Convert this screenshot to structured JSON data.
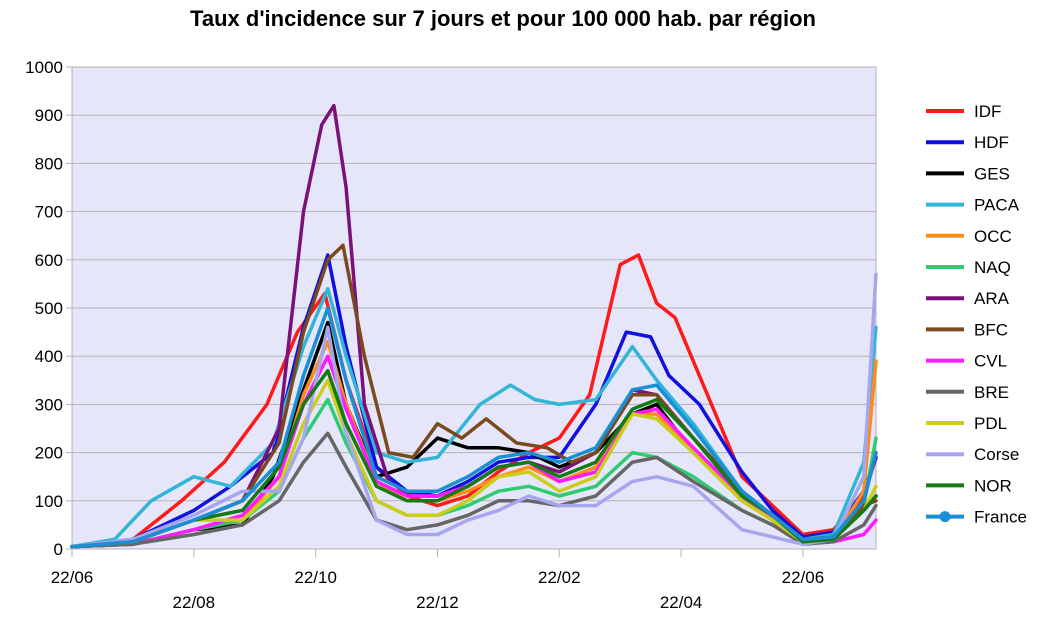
{
  "chart_data": {
    "type": "line",
    "title": "Taux d'incidence sur 7 jours et pour 100 000 hab. par région",
    "xlabel": "",
    "ylabel": "",
    "ylim": [
      0,
      1000
    ],
    "yticks": [
      0,
      100,
      200,
      300,
      400,
      500,
      600,
      700,
      800,
      900,
      1000
    ],
    "xlim": [
      0,
      13.2
    ],
    "xticks": [
      {
        "x": 0,
        "label": "22/06",
        "row": 0
      },
      {
        "x": 2,
        "label": "22/08",
        "row": 1
      },
      {
        "x": 4,
        "label": "22/10",
        "row": 0
      },
      {
        "x": 6,
        "label": "22/12",
        "row": 1
      },
      {
        "x": 8,
        "label": "22/02",
        "row": 0
      },
      {
        "x": 10,
        "label": "22/04",
        "row": 1
      },
      {
        "x": 12,
        "label": "22/06",
        "row": 0
      }
    ],
    "grid": true,
    "plot_background": "#e6e6fa",
    "legend_position": "right",
    "series": [
      {
        "name": "IDF",
        "color": "#ff1a1a",
        "x": [
          0,
          1,
          1.8,
          2.5,
          3.2,
          3.7,
          4.15,
          4.5,
          5,
          5.5,
          6,
          6.5,
          7,
          7.5,
          8,
          8.5,
          9,
          9.3,
          9.6,
          9.9,
          10.5,
          11,
          11.5,
          12,
          12.5,
          13,
          13.2
        ],
        "y": [
          5,
          20,
          100,
          180,
          300,
          450,
          530,
          350,
          170,
          110,
          90,
          110,
          160,
          200,
          230,
          320,
          590,
          610,
          510,
          480,
          300,
          150,
          90,
          30,
          40,
          110,
          190
        ]
      },
      {
        "name": "HDF",
        "color": "#1010e0",
        "x": [
          0,
          1,
          2,
          2.6,
          3.3,
          3.8,
          4.2,
          4.5,
          5,
          5.5,
          6,
          6.5,
          7,
          7.5,
          8,
          8.6,
          9.1,
          9.5,
          9.8,
          10.3,
          11,
          11.5,
          12,
          12.5,
          13,
          13.2
        ],
        "y": [
          5,
          20,
          80,
          130,
          200,
          460,
          610,
          420,
          170,
          120,
          110,
          140,
          180,
          190,
          190,
          300,
          450,
          440,
          360,
          300,
          160,
          80,
          25,
          35,
          120,
          190
        ]
      },
      {
        "name": "GES",
        "color": "#000000",
        "x": [
          0,
          1,
          2,
          2.8,
          3.3,
          3.8,
          4.2,
          4.5,
          5,
          5.5,
          6,
          6.5,
          7,
          7.5,
          8,
          8.6,
          9.2,
          9.6,
          10.2,
          11,
          11.5,
          12,
          12.5,
          13,
          13.2
        ],
        "y": [
          5,
          10,
          40,
          50,
          150,
          330,
          470,
          300,
          150,
          170,
          230,
          210,
          210,
          200,
          170,
          200,
          280,
          300,
          200,
          110,
          60,
          15,
          20,
          80,
          110
        ]
      },
      {
        "name": "PACA",
        "color": "#33b5d6",
        "x": [
          0,
          0.7,
          1.3,
          2,
          2.6,
          3.3,
          3.8,
          4.2,
          4.5,
          5,
          5.5,
          6,
          6.7,
          7.2,
          7.6,
          8,
          8.6,
          9.2,
          9.6,
          10.2,
          11,
          11.5,
          12,
          12.5,
          13,
          13.2
        ],
        "y": [
          5,
          20,
          100,
          150,
          130,
          220,
          420,
          540,
          400,
          200,
          180,
          190,
          300,
          340,
          310,
          300,
          310,
          420,
          350,
          260,
          120,
          70,
          20,
          30,
          180,
          460
        ]
      },
      {
        "name": "OCC",
        "color": "#ff8c1a",
        "x": [
          0,
          1,
          2,
          2.8,
          3.4,
          3.8,
          4.2,
          4.5,
          5,
          5.5,
          6,
          6.5,
          7,
          7.5,
          8,
          8.6,
          9.2,
          9.6,
          10.2,
          11,
          11.5,
          12,
          12.5,
          13,
          13.2
        ],
        "y": [
          5,
          10,
          40,
          60,
          150,
          320,
          430,
          300,
          140,
          100,
          100,
          120,
          150,
          170,
          140,
          170,
          280,
          280,
          200,
          100,
          60,
          15,
          20,
          120,
          390
        ]
      },
      {
        "name": "NAQ",
        "color": "#2ecc71",
        "x": [
          0,
          1,
          2,
          2.8,
          3.4,
          3.8,
          4.2,
          4.5,
          5,
          5.5,
          6,
          6.5,
          7,
          7.5,
          8,
          8.6,
          9.2,
          9.6,
          10.2,
          11,
          11.5,
          12,
          12.5,
          13,
          13.2
        ],
        "y": [
          5,
          10,
          40,
          60,
          120,
          230,
          310,
          220,
          100,
          70,
          70,
          90,
          120,
          130,
          110,
          130,
          200,
          190,
          150,
          80,
          50,
          15,
          20,
          90,
          230
        ]
      },
      {
        "name": "ARA",
        "color": "#7b107b",
        "x": [
          0,
          1,
          2,
          2.8,
          3.4,
          3.8,
          4.1,
          4.3,
          4.5,
          4.8,
          5.2,
          5.6,
          6,
          6.5,
          7,
          7.5,
          8,
          8.6,
          9.2,
          9.6,
          10.2,
          11,
          11.5,
          12,
          12.5,
          13,
          13.2
        ],
        "y": [
          5,
          15,
          60,
          100,
          250,
          700,
          880,
          920,
          750,
          300,
          140,
          110,
          110,
          130,
          170,
          180,
          160,
          200,
          330,
          320,
          230,
          120,
          70,
          20,
          25,
          100,
          200
        ]
      },
      {
        "name": "BFC",
        "color": "#7a4a1e",
        "x": [
          0,
          1,
          2,
          2.8,
          3.4,
          3.8,
          4.2,
          4.45,
          4.8,
          5.2,
          5.6,
          6,
          6.4,
          6.8,
          7.3,
          7.8,
          8.2,
          8.6,
          9.2,
          9.6,
          10.2,
          11,
          11.5,
          12,
          12.5,
          13,
          13.2
        ],
        "y": [
          5,
          15,
          60,
          100,
          220,
          450,
          600,
          630,
          400,
          200,
          190,
          260,
          230,
          270,
          220,
          210,
          180,
          200,
          320,
          320,
          230,
          120,
          70,
          20,
          25,
          90,
          100
        ]
      },
      {
        "name": "CVL",
        "color": "#ff1aff",
        "x": [
          0,
          1,
          2,
          2.8,
          3.4,
          3.8,
          4.2,
          4.5,
          5,
          5.5,
          6,
          6.5,
          7,
          7.5,
          8,
          8.6,
          9.2,
          9.6,
          10.2,
          11,
          11.5,
          12,
          12.5,
          13,
          13.2
        ],
        "y": [
          5,
          10,
          40,
          70,
          150,
          300,
          400,
          290,
          140,
          110,
          110,
          130,
          170,
          180,
          140,
          160,
          280,
          290,
          210,
          110,
          60,
          15,
          15,
          30,
          60
        ]
      },
      {
        "name": "BRE",
        "color": "#666666",
        "x": [
          0,
          1,
          2,
          2.8,
          3.4,
          3.8,
          4.2,
          4.5,
          5,
          5.5,
          6,
          6.5,
          7,
          7.5,
          8,
          8.6,
          9.2,
          9.6,
          10.2,
          11,
          11.5,
          12,
          12.5,
          13,
          13.2
        ],
        "y": [
          5,
          10,
          30,
          50,
          100,
          180,
          240,
          170,
          60,
          40,
          50,
          70,
          100,
          100,
          90,
          110,
          180,
          190,
          140,
          80,
          50,
          10,
          15,
          50,
          90
        ]
      },
      {
        "name": "PDL",
        "color": "#cccc1a",
        "x": [
          0,
          1,
          2,
          2.8,
          3.4,
          3.8,
          4.2,
          4.5,
          5,
          5.5,
          6,
          6.5,
          7,
          7.5,
          8,
          8.6,
          9.2,
          9.6,
          10.2,
          11,
          11.5,
          12,
          12.5,
          13,
          13.2
        ],
        "y": [
          5,
          15,
          60,
          60,
          130,
          260,
          350,
          240,
          100,
          70,
          70,
          100,
          150,
          160,
          120,
          150,
          280,
          270,
          200,
          100,
          60,
          15,
          20,
          80,
          130
        ]
      },
      {
        "name": "Corse",
        "color": "#a6a6ee",
        "x": [
          0,
          1,
          2,
          2.8,
          3.4,
          3.8,
          4.2,
          4.5,
          5,
          5.5,
          6,
          6.5,
          7,
          7.5,
          8,
          8.6,
          9.2,
          9.6,
          10.2,
          11,
          11.5,
          12,
          12.5,
          13,
          13.2
        ],
        "y": [
          5,
          20,
          70,
          120,
          120,
          230,
          460,
          240,
          60,
          30,
          30,
          60,
          80,
          110,
          90,
          90,
          140,
          150,
          130,
          40,
          25,
          10,
          20,
          150,
          570
        ]
      },
      {
        "name": "NOR",
        "color": "#147a14",
        "x": [
          0,
          1,
          2,
          2.8,
          3.4,
          3.8,
          4.2,
          4.5,
          5,
          5.5,
          6,
          6.5,
          7,
          7.5,
          8,
          8.6,
          9.2,
          9.6,
          10.2,
          11,
          11.5,
          12,
          12.5,
          13,
          13.2
        ],
        "y": [
          5,
          15,
          60,
          80,
          170,
          300,
          370,
          260,
          130,
          100,
          100,
          130,
          170,
          180,
          150,
          180,
          290,
          310,
          230,
          110,
          70,
          15,
          20,
          80,
          110
        ]
      },
      {
        "name": "France",
        "color": "#1a8fd6",
        "x": [
          0,
          1,
          2,
          2.8,
          3.4,
          3.8,
          4.2,
          4.5,
          5,
          5.5,
          6,
          6.5,
          7,
          7.5,
          8,
          8.6,
          9.2,
          9.6,
          10.2,
          11,
          11.5,
          12,
          12.5,
          13,
          13.2
        ],
        "y": [
          5,
          15,
          60,
          100,
          180,
          360,
          500,
          350,
          150,
          120,
          120,
          150,
          190,
          200,
          180,
          210,
          330,
          340,
          250,
          120,
          70,
          20,
          25,
          100,
          200
        ],
        "marker": "circle"
      }
    ]
  }
}
